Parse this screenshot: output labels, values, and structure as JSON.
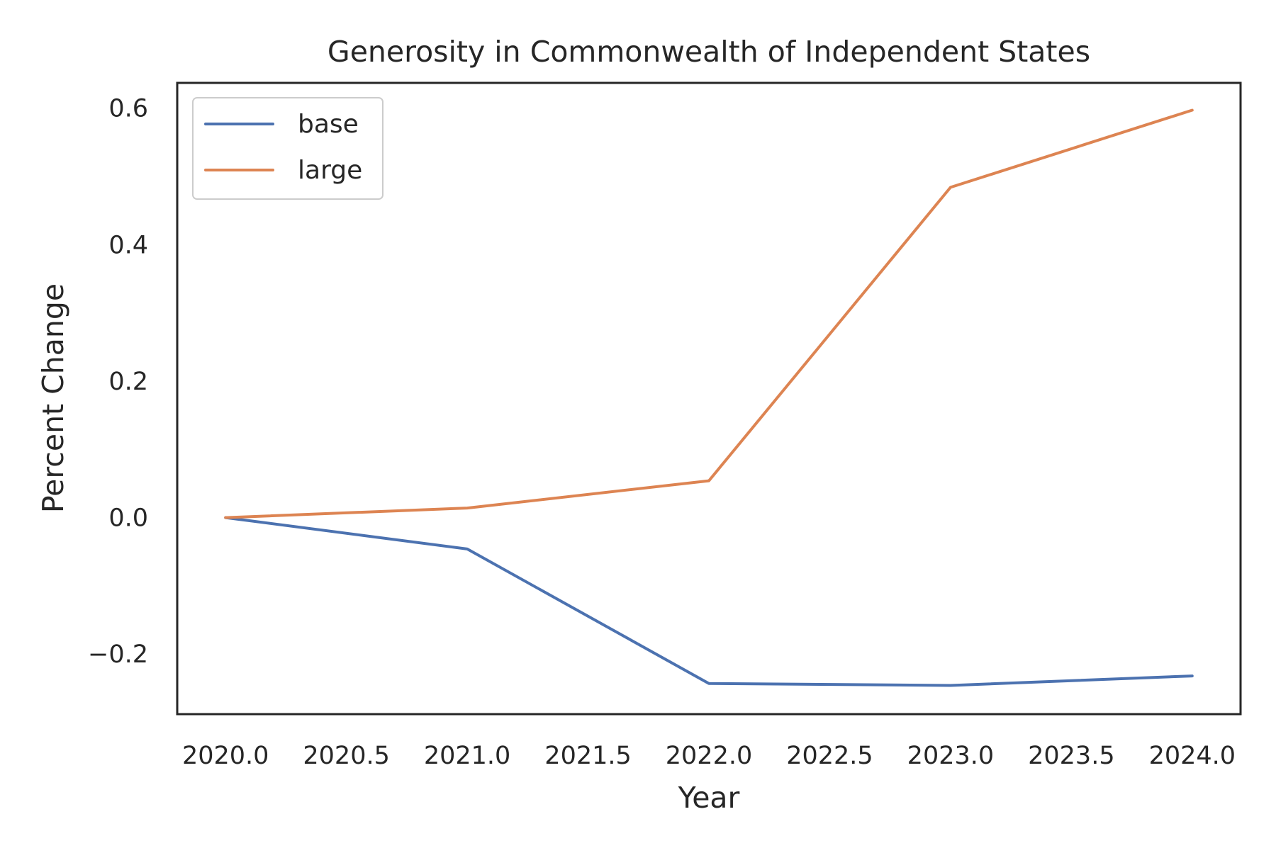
{
  "chart_data": {
    "type": "line",
    "title": "Generosity in Commonwealth of Independent States",
    "xlabel": "Year",
    "ylabel": "Percent Change",
    "x": [
      2020,
      2021,
      2022,
      2023,
      2024
    ],
    "series": [
      {
        "name": "base",
        "color": "#4c72b0",
        "values": [
          0.0,
          -0.046,
          -0.243,
          -0.246,
          -0.232
        ]
      },
      {
        "name": "large",
        "color": "#dd8452",
        "values": [
          0.0,
          0.014,
          0.054,
          0.484,
          0.597
        ]
      }
    ],
    "xlim": [
      2019.8,
      2024.2
    ],
    "ylim": [
      -0.288,
      0.637
    ],
    "xticks": [
      2020.0,
      2020.5,
      2021.0,
      2021.5,
      2022.0,
      2022.5,
      2023.0,
      2023.5,
      2024.0
    ],
    "xtick_labels": [
      "2020.0",
      "2020.5",
      "2021.0",
      "2021.5",
      "2022.0",
      "2022.5",
      "2023.0",
      "2023.5",
      "2024.0"
    ],
    "yticks": [
      -0.2,
      0.0,
      0.2,
      0.4,
      0.6
    ],
    "ytick_labels": [
      "−0.2",
      "0.0",
      "0.2",
      "0.4",
      "0.6"
    ],
    "grid": false,
    "legend_position": "upper-left"
  }
}
